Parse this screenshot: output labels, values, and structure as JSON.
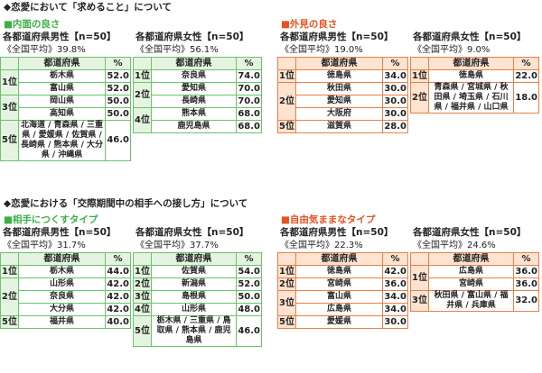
{
  "sections": [
    {
      "title": "◆恋愛において「求めること」について",
      "groups": [
        {
          "label": "■内面の良さ",
          "theme": "green",
          "color": "#3cb043",
          "tables": [
            {
              "subtitle": "各都道府県男性【n=50】",
              "average": "《全国平均》39.8%",
              "header": [
                "",
                "都道府県",
                "%"
              ],
              "rows": [
                {
                  "rank": "1位",
                  "items": [
                    {
                      "name": "栃木県",
                      "pct": "52.0"
                    },
                    {
                      "name": "富山県",
                      "pct": "52.0"
                    }
                  ]
                },
                {
                  "rank": "3位",
                  "items": [
                    {
                      "name": "岡山県",
                      "pct": "50.0"
                    },
                    {
                      "name": "高知県",
                      "pct": "50.0"
                    }
                  ]
                },
                {
                  "rank": "5位",
                  "items": [
                    {
                      "name": "北海道 / 青森県 / 三重県 / 愛媛県 / 佐賀県 / 長崎県 / 熊本県 / 大分県 / 沖縄県",
                      "pct": "46.0"
                    }
                  ]
                }
              ]
            },
            {
              "subtitle": "各都道府県女性【n=50】",
              "average": "《全国平均》56.1%",
              "header": [
                "",
                "都道府県",
                "%"
              ],
              "rows": [
                {
                  "rank": "1位",
                  "items": [
                    {
                      "name": "奈良県",
                      "pct": "74.0"
                    }
                  ]
                },
                {
                  "rank": "2位",
                  "items": [
                    {
                      "name": "愛知県",
                      "pct": "70.0"
                    },
                    {
                      "name": "長崎県",
                      "pct": "70.0"
                    }
                  ]
                },
                {
                  "rank": "4位",
                  "items": [
                    {
                      "name": "熊本県",
                      "pct": "68.0"
                    },
                    {
                      "name": "鹿児島県",
                      "pct": "68.0"
                    }
                  ]
                }
              ]
            }
          ]
        },
        {
          "label": "■外見の良さ",
          "theme": "orange",
          "color": "#e8501e",
          "tables": [
            {
              "subtitle": "各都道府県男性【n=50】",
              "average": "《全国平均》19.0%",
              "header": [
                "",
                "都道府県",
                "%"
              ],
              "rows": [
                {
                  "rank": "1位",
                  "items": [
                    {
                      "name": "徳島県",
                      "pct": "34.0"
                    }
                  ]
                },
                {
                  "rank": "2位",
                  "items": [
                    {
                      "name": "秋田県",
                      "pct": "30.0"
                    },
                    {
                      "name": "愛知県",
                      "pct": "30.0"
                    },
                    {
                      "name": "大阪府",
                      "pct": "30.0"
                    }
                  ]
                },
                {
                  "rank": "5位",
                  "items": [
                    {
                      "name": "滋賀県",
                      "pct": "28.0"
                    }
                  ]
                }
              ]
            },
            {
              "subtitle": "各都道府県女性【n=50】",
              "average": "《全国平均》9.0%",
              "header": [
                "",
                "都道府県",
                "%"
              ],
              "rows": [
                {
                  "rank": "1位",
                  "items": [
                    {
                      "name": "徳島県",
                      "pct": "22.0"
                    }
                  ]
                },
                {
                  "rank": "2位",
                  "items": [
                    {
                      "name": "青森県 / 宮城県 / 秋田県 / 埼玉県 / 石川県 / 福井県 / 山口県",
                      "pct": "18.0"
                    }
                  ]
                }
              ]
            }
          ]
        }
      ]
    },
    {
      "title": "◆恋愛における「交際期間中の相手への接し方」について",
      "groups": [
        {
          "label": "■相手につくすタイプ",
          "theme": "green",
          "color": "#3cb043",
          "tables": [
            {
              "subtitle": "各都道府県男性【n=50】",
              "average": "《全国平均》31.7%",
              "header": [
                "",
                "都道府県",
                "%"
              ],
              "rows": [
                {
                  "rank": "1位",
                  "items": [
                    {
                      "name": "栃木県",
                      "pct": "44.0"
                    }
                  ]
                },
                {
                  "rank": "2位",
                  "items": [
                    {
                      "name": "山形県",
                      "pct": "42.0"
                    },
                    {
                      "name": "奈良県",
                      "pct": "42.0"
                    },
                    {
                      "name": "大分県",
                      "pct": "42.0"
                    }
                  ]
                },
                {
                  "rank": "5位",
                  "items": [
                    {
                      "name": "福井県",
                      "pct": "40.0"
                    }
                  ]
                }
              ]
            },
            {
              "subtitle": "各都道府県女性【n=50】",
              "average": "《全国平均》37.7%",
              "header": [
                "",
                "都道府県",
                "%"
              ],
              "rows": [
                {
                  "rank": "1位",
                  "items": [
                    {
                      "name": "佐賀県",
                      "pct": "54.0"
                    }
                  ]
                },
                {
                  "rank": "2位",
                  "items": [
                    {
                      "name": "新潟県",
                      "pct": "52.0"
                    }
                  ]
                },
                {
                  "rank": "3位",
                  "items": [
                    {
                      "name": "島根県",
                      "pct": "50.0"
                    }
                  ]
                },
                {
                  "rank": "4位",
                  "items": [
                    {
                      "name": "山形県",
                      "pct": "48.0"
                    }
                  ]
                },
                {
                  "rank": "5位",
                  "items": [
                    {
                      "name": "栃木県 / 三重県 / 鳥取県 / 熊本県 / 鹿児島県",
                      "pct": "46.0"
                    }
                  ]
                }
              ]
            }
          ]
        },
        {
          "label": "■自由気ままなタイプ",
          "theme": "orange",
          "color": "#e8501e",
          "tables": [
            {
              "subtitle": "各都道府県男性【n=50】",
              "average": "《全国平均》22.3%",
              "header": [
                "",
                "都道府県",
                "%"
              ],
              "rows": [
                {
                  "rank": "1位",
                  "items": [
                    {
                      "name": "徳島県",
                      "pct": "42.0"
                    }
                  ]
                },
                {
                  "rank": "2位",
                  "items": [
                    {
                      "name": "宮崎県",
                      "pct": "36.0"
                    }
                  ]
                },
                {
                  "rank": "3位",
                  "items": [
                    {
                      "name": "富山県",
                      "pct": "34.0"
                    },
                    {
                      "name": "広島県",
                      "pct": "34.0"
                    }
                  ]
                },
                {
                  "rank": "5位",
                  "items": [
                    {
                      "name": "愛媛県",
                      "pct": "30.0"
                    }
                  ]
                }
              ]
            },
            {
              "subtitle": "各都道府県女性【n=50】",
              "average": "《全国平均》24.6%",
              "header": [
                "",
                "都道府県",
                "%"
              ],
              "rows": [
                {
                  "rank": "1位",
                  "items": [
                    {
                      "name": "広島県",
                      "pct": "36.0"
                    },
                    {
                      "name": "宮崎県",
                      "pct": "36.0"
                    }
                  ]
                },
                {
                  "rank": "3位",
                  "items": [
                    {
                      "name": "秋田県 / 富山県 / 福井県 / 兵庫県",
                      "pct": "32.0"
                    }
                  ]
                }
              ]
            }
          ]
        }
      ]
    }
  ]
}
